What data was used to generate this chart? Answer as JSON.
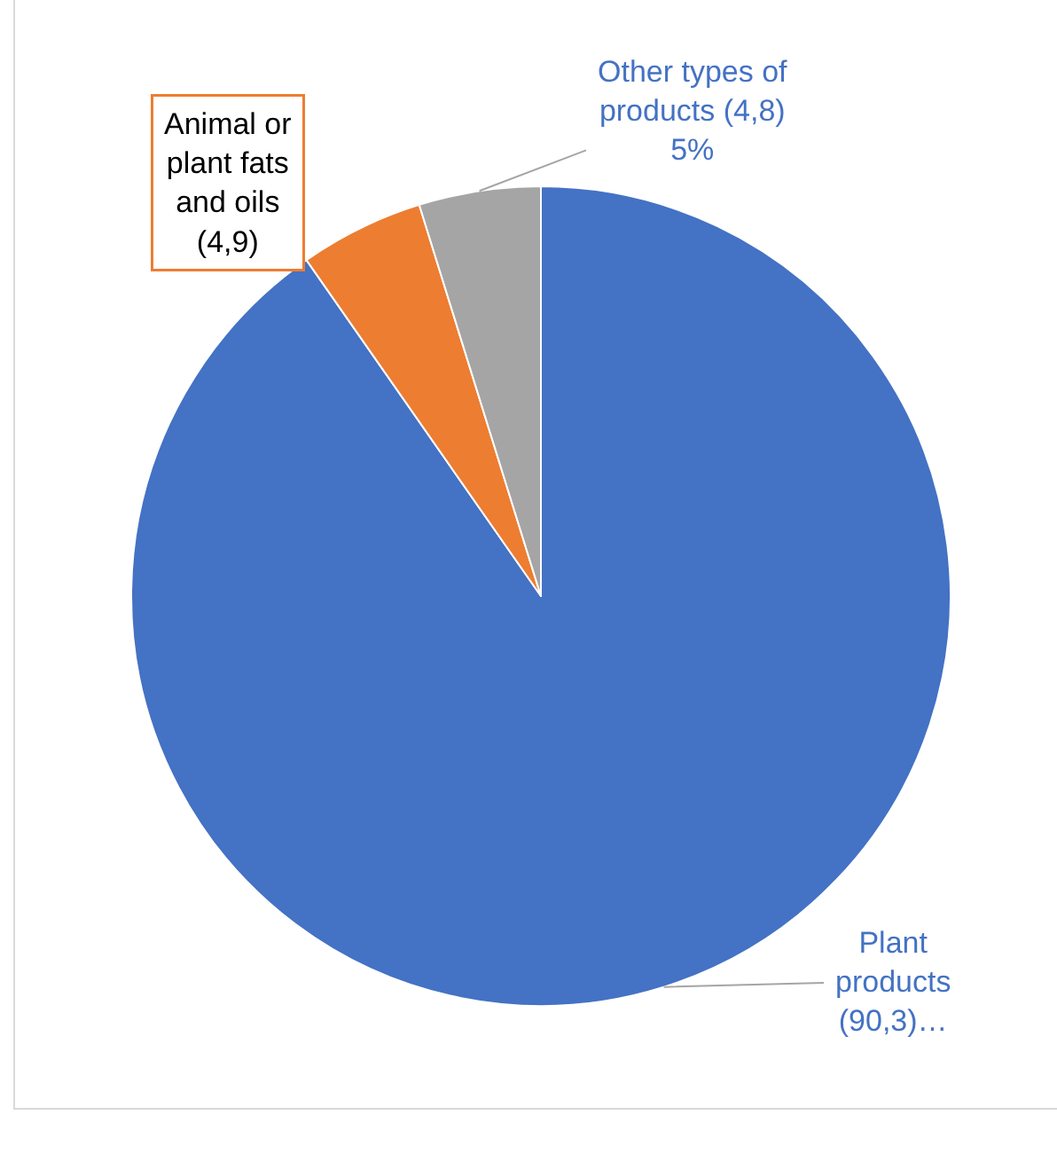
{
  "chart_data": {
    "type": "pie",
    "categories": [
      "Plant products",
      "Animal or plant fats and oils",
      "Other types of products"
    ],
    "values": [
      90.3,
      4.9,
      4.8
    ],
    "colors": [
      "#4472c4",
      "#ed7d31",
      "#a5a5a5"
    ],
    "value_labels": [
      "(90,3)…",
      "(4,9)",
      "(4,8)\n5%"
    ]
  }
}
